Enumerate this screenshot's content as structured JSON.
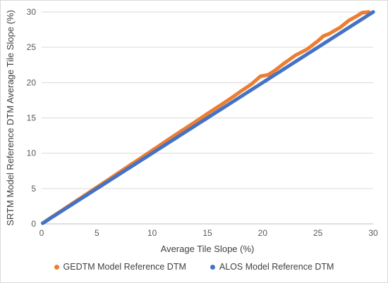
{
  "chart_data": {
    "type": "scatter",
    "xlabel": "Average Tile Slope (%)",
    "ylabel": "SRTM Model Reference DTM Average Tile Slope (%)",
    "xlim": [
      0,
      30
    ],
    "ylim": [
      0,
      30
    ],
    "x_ticks": [
      "0",
      "5",
      "10",
      "15",
      "20",
      "25",
      "30"
    ],
    "y_ticks": [
      "0",
      "5",
      "10",
      "15",
      "20",
      "25",
      "30"
    ],
    "grid": "horizontal",
    "legend_position": "bottom",
    "series": [
      {
        "name": "GEDTM Model Reference DTM",
        "color": "#ED7D31",
        "points": [
          [
            0.3,
            0.3
          ],
          [
            1.0,
            1.05
          ],
          [
            2.0,
            2.08
          ],
          [
            3.0,
            3.12
          ],
          [
            4.0,
            4.15
          ],
          [
            5.0,
            5.2
          ],
          [
            6.0,
            6.22
          ],
          [
            7.0,
            7.28
          ],
          [
            8.0,
            8.32
          ],
          [
            9.0,
            9.35
          ],
          [
            10.0,
            10.4
          ],
          [
            11.0,
            11.45
          ],
          [
            12.0,
            12.5
          ],
          [
            13.0,
            13.52
          ],
          [
            14.0,
            14.55
          ],
          [
            15.0,
            15.6
          ],
          [
            16.0,
            16.62
          ],
          [
            17.0,
            17.65
          ],
          [
            18.0,
            18.75
          ],
          [
            19.0,
            19.8
          ],
          [
            19.8,
            20.9
          ],
          [
            20.5,
            21.1
          ],
          [
            21.0,
            21.6
          ],
          [
            22.0,
            22.8
          ],
          [
            23.0,
            23.9
          ],
          [
            24.0,
            24.7
          ],
          [
            25.0,
            25.9
          ],
          [
            25.5,
            26.6
          ],
          [
            26.0,
            26.9
          ],
          [
            27.0,
            27.8
          ],
          [
            27.8,
            28.8
          ],
          [
            28.5,
            29.4
          ],
          [
            29.0,
            29.9
          ],
          [
            29.6,
            30.0
          ]
        ]
      },
      {
        "name": "ALOS Model Reference DTM",
        "color": "#4472C4",
        "points": [
          [
            0.1,
            0.1
          ],
          [
            1.0,
            1.0
          ],
          [
            2.0,
            2.0
          ],
          [
            3.0,
            3.0
          ],
          [
            4.0,
            4.0
          ],
          [
            5.0,
            5.0
          ],
          [
            6.0,
            6.0
          ],
          [
            7.0,
            7.0
          ],
          [
            8.0,
            8.0
          ],
          [
            9.0,
            9.0
          ],
          [
            10.0,
            10.0
          ],
          [
            11.0,
            11.0
          ],
          [
            12.0,
            12.0
          ],
          [
            13.0,
            13.0
          ],
          [
            14.0,
            14.0
          ],
          [
            15.0,
            15.0
          ],
          [
            16.0,
            16.0
          ],
          [
            17.0,
            17.0
          ],
          [
            18.0,
            18.0
          ],
          [
            19.0,
            19.0
          ],
          [
            20.0,
            20.0
          ],
          [
            21.0,
            21.0
          ],
          [
            22.0,
            22.0
          ],
          [
            23.0,
            23.0
          ],
          [
            24.0,
            24.0
          ],
          [
            25.0,
            25.0
          ],
          [
            26.0,
            26.0
          ],
          [
            27.0,
            27.0
          ],
          [
            28.0,
            28.0
          ],
          [
            29.0,
            29.0
          ],
          [
            30.0,
            30.0
          ]
        ]
      }
    ]
  }
}
